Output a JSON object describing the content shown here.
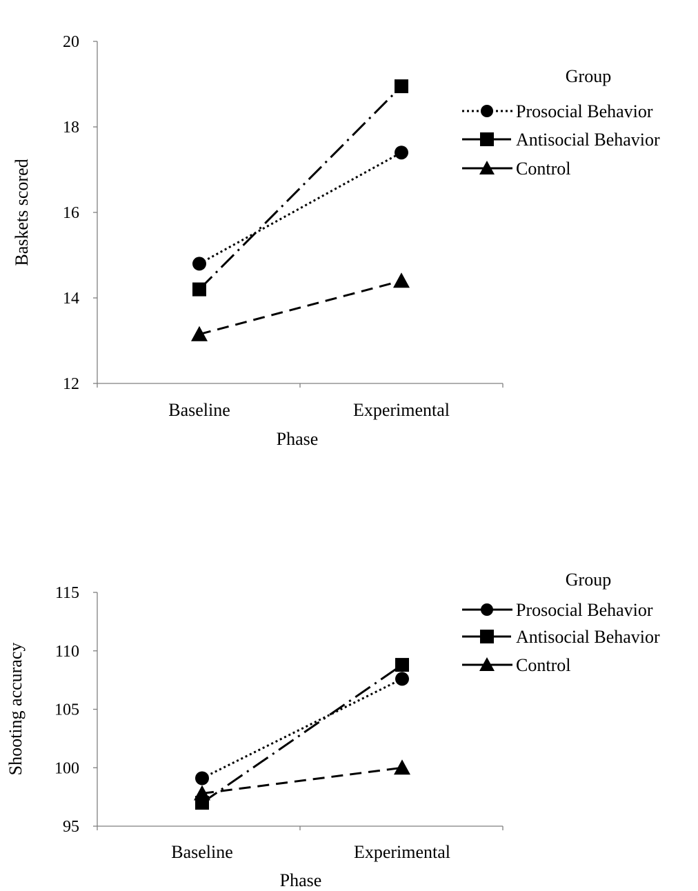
{
  "chart_data": [
    {
      "type": "line",
      "title": "",
      "xlabel": "Phase",
      "ylabel": "Baskets scored",
      "categories": [
        "Baseline",
        "Experimental"
      ],
      "ylim": [
        12,
        20
      ],
      "yticks": [
        12,
        14,
        16,
        18,
        20
      ],
      "grid": false,
      "legend": {
        "title": "Group",
        "placement": "right",
        "entries": [
          "Prosocial Behavior",
          "Antisocial Behavior",
          "Control"
        ]
      },
      "series": [
        {
          "name": "Prosocial Behavior",
          "values": [
            14.8,
            17.4
          ],
          "marker": "circle",
          "line_style": "dotted"
        },
        {
          "name": "Antisocial Behavior",
          "values": [
            14.2,
            18.95
          ],
          "marker": "square",
          "line_style": "dash-dot"
        },
        {
          "name": "Control",
          "values": [
            13.15,
            14.4
          ],
          "marker": "triangle",
          "line_style": "dashed"
        }
      ]
    },
    {
      "type": "line",
      "title": "",
      "xlabel": "Phase",
      "ylabel": "Shooting accuracy",
      "categories": [
        "Baseline",
        "Experimental"
      ],
      "ylim": [
        95,
        115
      ],
      "yticks": [
        95,
        100,
        105,
        110,
        115
      ],
      "grid": false,
      "legend": {
        "title": "Group",
        "placement": "right",
        "entries": [
          "Prosocial Behavior",
          "Antisocial Behavior",
          "Control"
        ]
      },
      "series": [
        {
          "name": "Prosocial Behavior",
          "values": [
            99.1,
            107.6
          ],
          "marker": "circle",
          "line_style": "dotted"
        },
        {
          "name": "Antisocial Behavior",
          "values": [
            97.0,
            108.8
          ],
          "marker": "square",
          "line_style": "dash-dot"
        },
        {
          "name": "Control",
          "values": [
            97.8,
            100.0
          ],
          "marker": "triangle",
          "line_style": "dashed"
        }
      ]
    }
  ]
}
